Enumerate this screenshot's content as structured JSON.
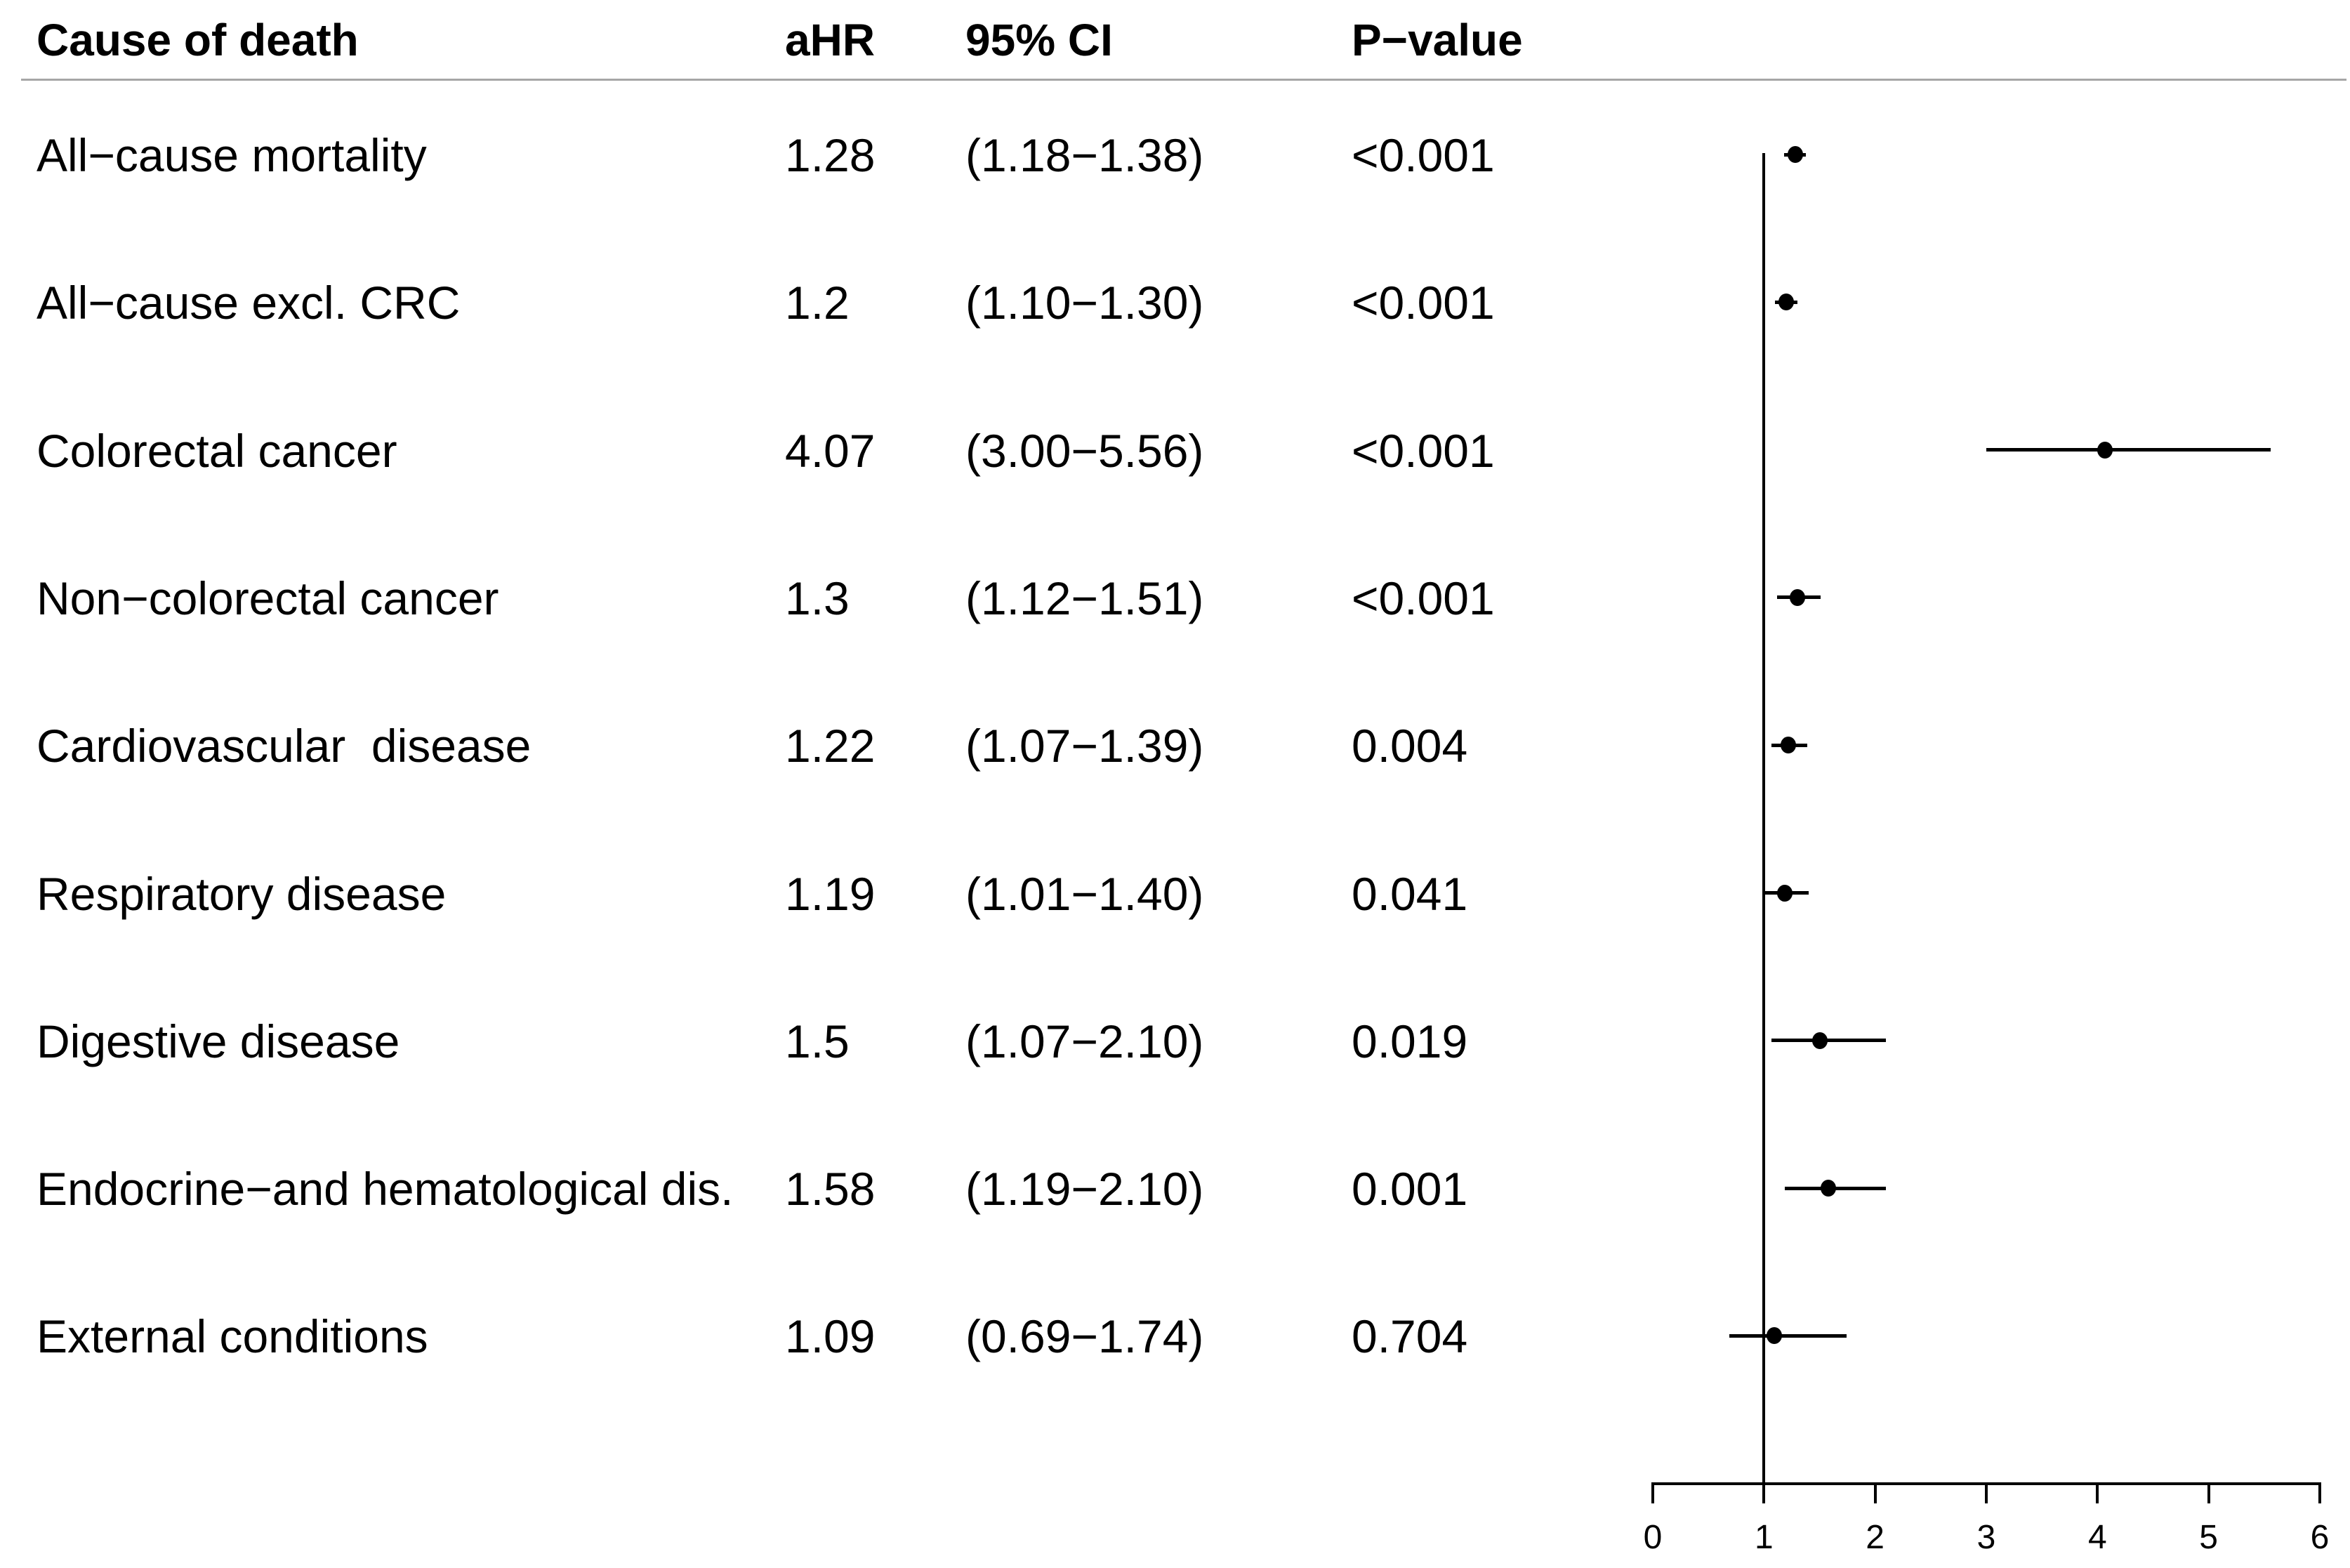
{
  "table": {
    "headers": {
      "cause": "Cause of death",
      "ahr": "aHR",
      "ci": "95% CI",
      "p": "P−value"
    }
  },
  "colors": {
    "text": "#000000",
    "marker": "#000000",
    "line": "#000000",
    "separator": "#a6a6a6",
    "background": "#ffffff"
  },
  "chart_data": {
    "type": "scatter",
    "subtype": "forest-plot",
    "title": "",
    "xlabel": "",
    "ylabel": "",
    "xlim": [
      0,
      6
    ],
    "x_ticks": [
      "0",
      "1",
      "2",
      "3",
      "4",
      "5",
      "6"
    ],
    "reference_line_x": 1,
    "grid": false,
    "legend": "none",
    "columns": [
      "Cause of death",
      "aHR",
      "95% CI",
      "P−value"
    ],
    "rows": [
      {
        "label": "All−cause mortality",
        "ahr": 1.28,
        "ahr_text": "1.28",
        "ci": [
          1.18,
          1.38
        ],
        "ci_text": "(1.18−1.38)",
        "p": "<0.001"
      },
      {
        "label": "All−cause excl. CRC",
        "ahr": 1.2,
        "ahr_text": "1.2",
        "ci": [
          1.1,
          1.3
        ],
        "ci_text": "(1.10−1.30)",
        "p": "<0.001"
      },
      {
        "label": "Colorectal cancer",
        "ahr": 4.07,
        "ahr_text": "4.07",
        "ci": [
          3.0,
          5.56
        ],
        "ci_text": "(3.00−5.56)",
        "p": "<0.001"
      },
      {
        "label": "Non−colorectal cancer",
        "ahr": 1.3,
        "ahr_text": "1.3",
        "ci": [
          1.12,
          1.51
        ],
        "ci_text": "(1.12−1.51)",
        "p": "<0.001"
      },
      {
        "label": "Cardiovascular  disease",
        "ahr": 1.22,
        "ahr_text": "1.22",
        "ci": [
          1.07,
          1.39
        ],
        "ci_text": "(1.07−1.39)",
        "p": "0.004"
      },
      {
        "label": "Respiratory disease",
        "ahr": 1.19,
        "ahr_text": "1.19",
        "ci": [
          1.01,
          1.4
        ],
        "ci_text": "(1.01−1.40)",
        "p": "0.041"
      },
      {
        "label": "Digestive disease",
        "ahr": 1.5,
        "ahr_text": "1.5",
        "ci": [
          1.07,
          2.1
        ],
        "ci_text": "(1.07−2.10)",
        "p": "0.019"
      },
      {
        "label": "Endocrine−and hematological dis.",
        "ahr": 1.58,
        "ahr_text": "1.58",
        "ci": [
          1.19,
          2.1
        ],
        "ci_text": "(1.19−2.10)",
        "p": "0.001"
      },
      {
        "label": "External conditions",
        "ahr": 1.09,
        "ahr_text": "1.09",
        "ci": [
          0.69,
          1.74
        ],
        "ci_text": "(0.69−1.74)",
        "p": "0.704"
      }
    ]
  }
}
